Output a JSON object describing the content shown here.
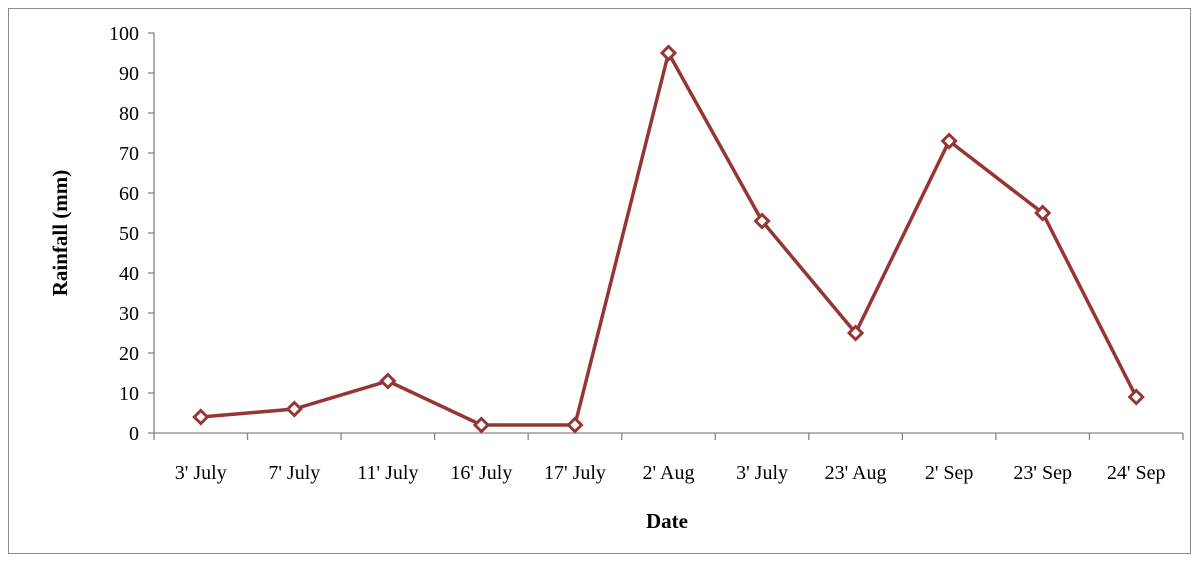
{
  "chart_data": {
    "type": "line",
    "title": "",
    "xlabel": "Date",
    "ylabel": "Rainfall (mm)",
    "categories": [
      "3' July",
      "7' July",
      "11' July",
      "16' July",
      "17' July",
      "2' Aug",
      "3' July",
      "23' Aug",
      "2' Sep",
      "23' Sep",
      "24' Sep"
    ],
    "series": [
      {
        "values": [
          4,
          6,
          13,
          2,
          2,
          95,
          53,
          25,
          73,
          55,
          9
        ]
      }
    ],
    "ylim": [
      0,
      100
    ],
    "yticks": [
      0,
      10,
      20,
      30,
      40,
      50,
      60,
      70,
      80,
      90,
      100
    ],
    "grid": false,
    "legend": "none",
    "line_color": "#963634",
    "marker": "diamond-open"
  }
}
